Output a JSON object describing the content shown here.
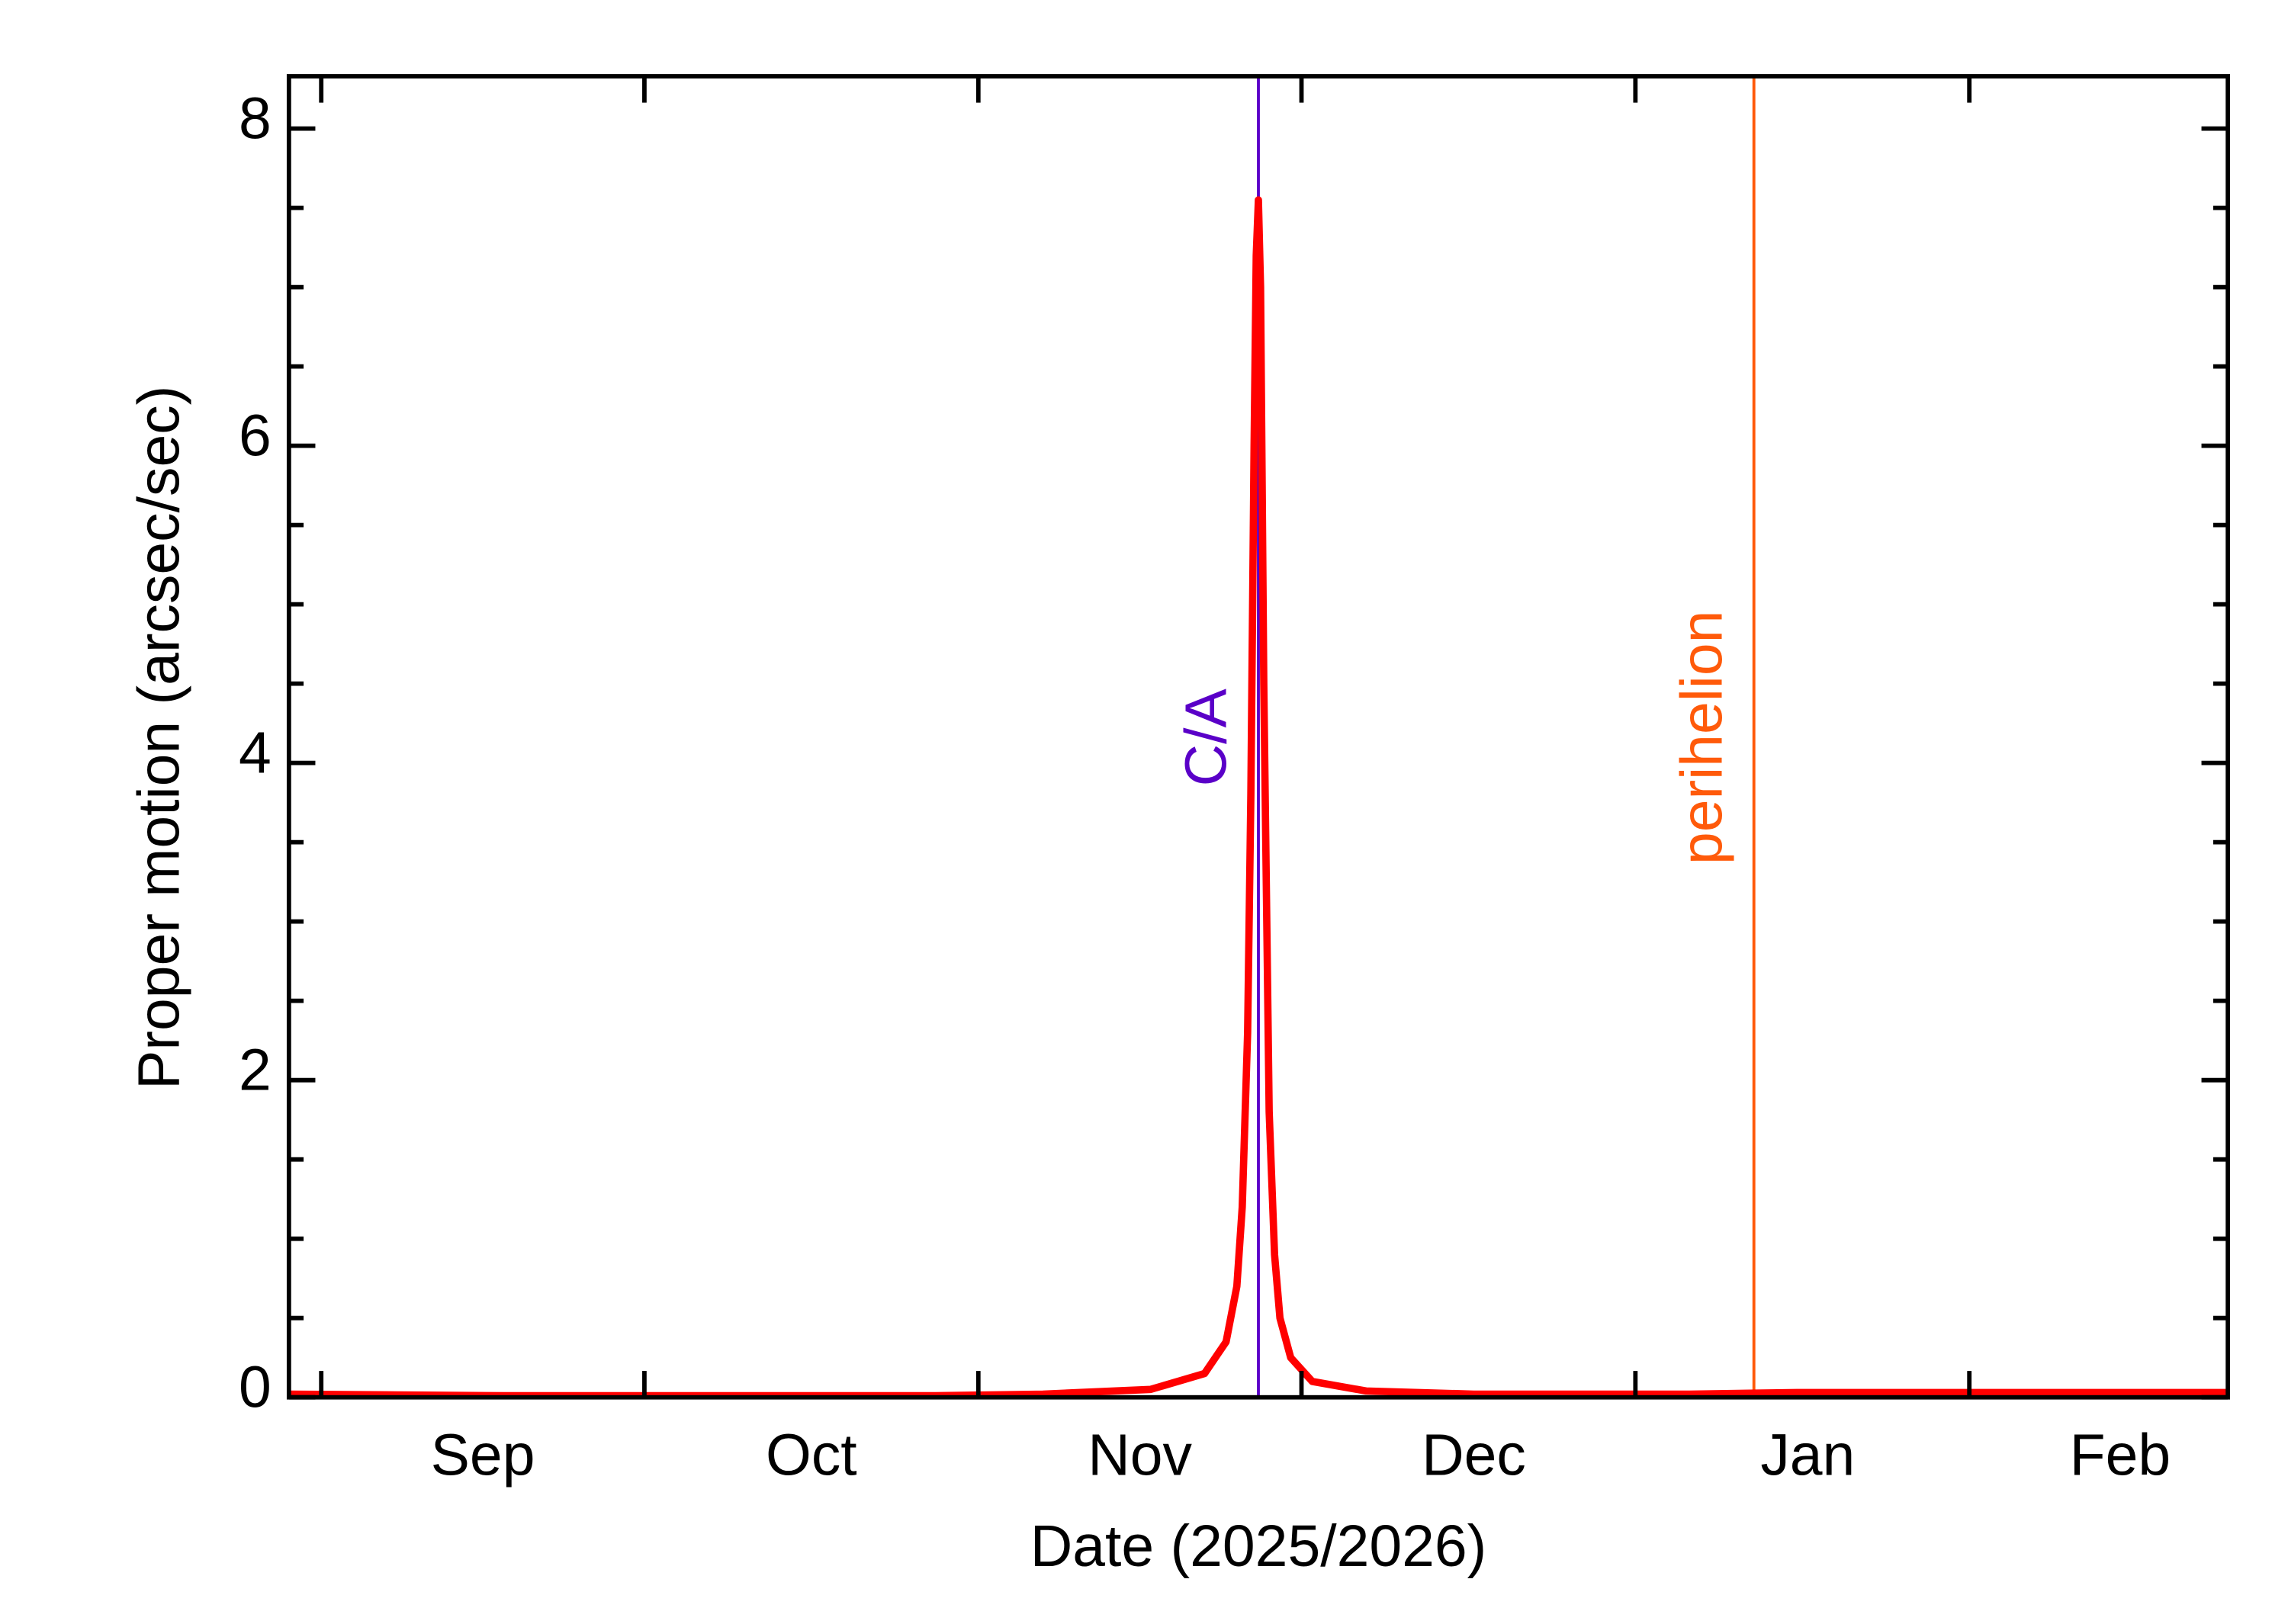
{
  "chart_data": {
    "type": "line",
    "xlabel": "Date (2025/2026)",
    "ylabel": "Proper motion (arcsec/sec)",
    "x": [
      0,
      10,
      20,
      30,
      40,
      50,
      60,
      70,
      80,
      85,
      87,
      88,
      88.5,
      89,
      89.3,
      89.6,
      89.8,
      90,
      90.2,
      90.5,
      91,
      91.5,
      92,
      93,
      95,
      100,
      110,
      120,
      130,
      140,
      150,
      160,
      170,
      180
    ],
    "series": [
      {
        "color": "#ff0000",
        "values": [
          0.02,
          0.015,
          0.01,
          0.01,
          0.01,
          0.01,
          0.01,
          0.02,
          0.05,
          0.15,
          0.35,
          0.7,
          1.2,
          2.3,
          3.8,
          6.0,
          7.2,
          7.55,
          7.0,
          4.5,
          1.8,
          0.9,
          0.5,
          0.25,
          0.1,
          0.04,
          0.02,
          0.02,
          0.02,
          0.03,
          0.03,
          0.03,
          0.03,
          0.03
        ]
      }
    ],
    "xlim": [
      0,
      180
    ],
    "xticks": [
      3,
      33,
      64,
      94,
      125,
      156
    ],
    "month_labels": [
      {
        "value": 18,
        "label": "Sep"
      },
      {
        "value": 48.5,
        "label": "Oct"
      },
      {
        "value": 79,
        "label": "Nov"
      },
      {
        "value": 110,
        "label": "Dec"
      },
      {
        "value": 141,
        "label": "Jan"
      },
      {
        "value": 170,
        "label": "Feb"
      }
    ],
    "ylim": [
      0,
      8.33
    ],
    "yticks": [
      0,
      2,
      4,
      6,
      8
    ],
    "yminor": [
      0.5,
      1,
      1.5,
      2.5,
      3,
      3.5,
      4.5,
      5,
      5.5,
      6.5,
      7,
      7.5
    ],
    "markers": [
      {
        "x": 90,
        "label": "C/A",
        "color": "#5a00c8"
      },
      {
        "x": 136,
        "label": "perihelion",
        "color": "#ff5a0a"
      }
    ]
  }
}
